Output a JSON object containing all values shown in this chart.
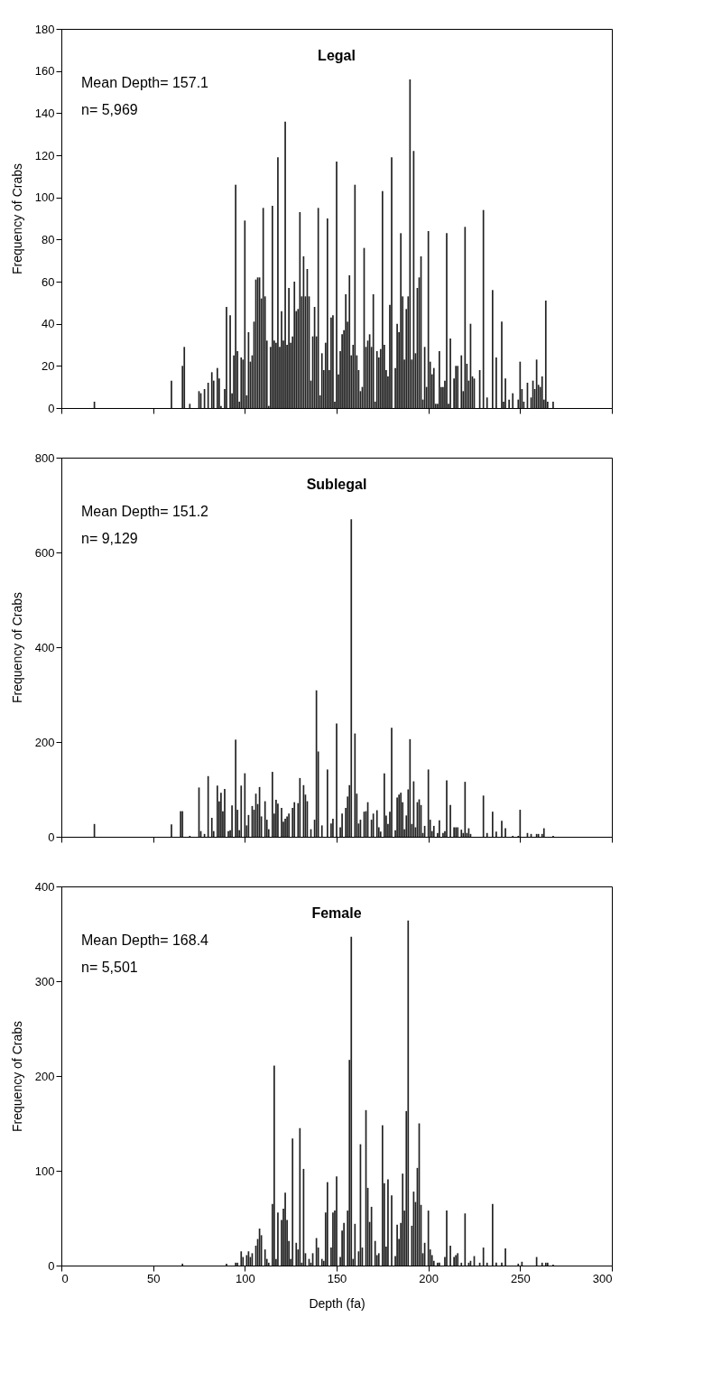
{
  "chart_data": [
    {
      "type": "bar",
      "title": "Legal",
      "ylabel": "Frequency of Crabs",
      "annotations": [
        "Mean Depth= 157.1",
        "n= 5,969"
      ],
      "color": "#222222",
      "xlim": [
        0,
        300
      ],
      "xticks": [
        0,
        50,
        100,
        150,
        200,
        250,
        300
      ],
      "ylim": [
        0,
        180
      ],
      "yticks": [
        0,
        20,
        40,
        60,
        80,
        100,
        120,
        140,
        160,
        180
      ],
      "tick_labels": "y",
      "grid": false,
      "x": [
        18,
        60,
        66,
        67,
        70,
        75,
        76,
        78,
        80,
        82,
        83,
        85,
        86,
        87,
        89,
        90,
        92,
        93,
        94,
        95,
        96,
        97,
        98,
        99,
        100,
        101,
        102,
        103,
        104,
        105,
        106,
        107,
        108,
        109,
        110,
        111,
        112,
        113,
        114,
        115,
        116,
        117,
        118,
        119,
        120,
        121,
        122,
        123,
        124,
        125,
        126,
        127,
        128,
        129,
        130,
        131,
        132,
        133,
        134,
        135,
        136,
        137,
        138,
        139,
        140,
        141,
        142,
        143,
        144,
        145,
        146,
        147,
        148,
        149,
        150,
        151,
        152,
        153,
        154,
        155,
        156,
        157,
        158,
        159,
        160,
        161,
        162,
        163,
        164,
        165,
        166,
        167,
        168,
        169,
        170,
        171,
        172,
        173,
        174,
        175,
        176,
        177,
        178,
        179,
        180,
        182,
        183,
        184,
        185,
        186,
        187,
        188,
        189,
        190,
        191,
        192,
        193,
        194,
        195,
        196,
        197,
        198,
        199,
        200,
        201,
        202,
        203,
        204,
        205,
        206,
        207,
        208,
        209,
        210,
        211,
        212,
        214,
        215,
        216,
        218,
        219,
        220,
        221,
        222,
        223,
        224,
        225,
        228,
        230,
        232,
        235,
        237,
        240,
        241,
        242,
        244,
        246,
        249,
        250,
        251,
        252,
        254,
        256,
        257,
        258,
        259,
        260,
        261,
        262,
        263,
        264,
        265,
        268
      ],
      "values": [
        3,
        13,
        20,
        29,
        2,
        8,
        7,
        9,
        12,
        17,
        13,
        19,
        14,
        1,
        9,
        48,
        44,
        7,
        25,
        106,
        27,
        3,
        24,
        23,
        89,
        6,
        36,
        22,
        25,
        41,
        61,
        62,
        62,
        52,
        95,
        53,
        32,
        1,
        29,
        96,
        32,
        31,
        119,
        29,
        46,
        32,
        136,
        30,
        57,
        31,
        34,
        60,
        46,
        47,
        93,
        53,
        72,
        53,
        66,
        53,
        13,
        34,
        48,
        34,
        95,
        6,
        26,
        18,
        31,
        90,
        18,
        43,
        44,
        3,
        117,
        16,
        27,
        35,
        37,
        54,
        41,
        63,
        25,
        30,
        106,
        25,
        18,
        8,
        10,
        76,
        29,
        32,
        35,
        29,
        54,
        3,
        27,
        24,
        28,
        103,
        30,
        18,
        15,
        49,
        119,
        19,
        40,
        36,
        83,
        53,
        23,
        47,
        53,
        156,
        23,
        122,
        26,
        57,
        62,
        72,
        4,
        29,
        10,
        84,
        22,
        16,
        19,
        2,
        2,
        27,
        10,
        10,
        13,
        83,
        2,
        33,
        14,
        20,
        20,
        25,
        8,
        86,
        21,
        13,
        40,
        15,
        14,
        18,
        94,
        5,
        56,
        24,
        41,
        3,
        14,
        4,
        7,
        4,
        22,
        9,
        3,
        12,
        5,
        13,
        9,
        23,
        11,
        10,
        15,
        4,
        51,
        3,
        3
      ]
    },
    {
      "type": "bar",
      "title": "Sublegal",
      "ylabel": "Frequency of Crabs",
      "annotations": [
        "Mean Depth= 151.2",
        "n= 9,129"
      ],
      "color": "#222222",
      "xlim": [
        0,
        300
      ],
      "xticks": [
        0,
        50,
        100,
        150,
        200,
        250,
        300
      ],
      "ylim": [
        0,
        800
      ],
      "yticks": [
        0,
        200,
        400,
        600,
        800
      ],
      "tick_labels": "y",
      "grid": false,
      "x": [
        18,
        60,
        65,
        66,
        70,
        75,
        76,
        78,
        80,
        82,
        83,
        85,
        86,
        87,
        88,
        89,
        91,
        92,
        93,
        95,
        96,
        97,
        98,
        100,
        101,
        102,
        104,
        105,
        106,
        107,
        108,
        109,
        111,
        112,
        113,
        115,
        116,
        117,
        118,
        120,
        121,
        122,
        123,
        124,
        126,
        127,
        129,
        130,
        132,
        133,
        134,
        136,
        138,
        139,
        140,
        142,
        145,
        147,
        148,
        150,
        152,
        153,
        155,
        156,
        157,
        158,
        160,
        161,
        162,
        163,
        165,
        166,
        167,
        169,
        170,
        172,
        173,
        174,
        176,
        177,
        178,
        179,
        180,
        182,
        183,
        184,
        185,
        186,
        187,
        188,
        189,
        190,
        191,
        192,
        193,
        194,
        195,
        196,
        197,
        198,
        200,
        201,
        202,
        203,
        205,
        206,
        208,
        209,
        210,
        212,
        214,
        215,
        216,
        218,
        219,
        220,
        221,
        222,
        223,
        225,
        228,
        230,
        232,
        235,
        237,
        240,
        242,
        246,
        249,
        250,
        254,
        256,
        259,
        260,
        262,
        263,
        268
      ],
      "values": [
        27,
        26,
        54,
        54,
        2,
        104,
        12,
        6,
        128,
        40,
        12,
        108,
        75,
        93,
        54,
        101,
        12,
        14,
        66,
        205,
        57,
        14,
        108,
        134,
        24,
        46,
        65,
        57,
        91,
        69,
        105,
        43,
        75,
        36,
        16,
        137,
        49,
        78,
        70,
        61,
        32,
        38,
        43,
        49,
        61,
        73,
        71,
        124,
        109,
        89,
        75,
        16,
        36,
        309,
        180,
        24,
        142,
        28,
        38,
        239,
        20,
        49,
        61,
        85,
        109,
        670,
        218,
        91,
        28,
        36,
        53,
        54,
        73,
        36,
        49,
        56,
        20,
        11,
        134,
        45,
        27,
        53,
        230,
        14,
        83,
        89,
        93,
        73,
        16,
        45,
        100,
        206,
        27,
        117,
        20,
        73,
        79,
        67,
        8,
        23,
        142,
        36,
        12,
        23,
        8,
        35,
        8,
        12,
        119,
        67,
        20,
        20,
        20,
        15,
        8,
        116,
        8,
        18,
        6,
        null,
        null,
        87,
        8,
        53,
        11,
        34,
        18,
        2,
        2,
        57,
        8,
        6,
        6,
        6,
        6,
        18,
        2
      ]
    },
    {
      "type": "bar",
      "title": "Female",
      "xlabel": "Depth (fa)",
      "ylabel": "Frequency of Crabs",
      "annotations": [
        "Mean Depth= 168.4",
        "n= 5,501"
      ],
      "color": "#222222",
      "xlim": [
        0,
        300
      ],
      "xticks": [
        0,
        50,
        100,
        150,
        200,
        250,
        300
      ],
      "ylim": [
        0,
        400
      ],
      "yticks": [
        0,
        100,
        200,
        300,
        400
      ],
      "grid": false,
      "x": [
        66,
        78,
        90,
        95,
        96,
        98,
        99,
        101,
        102,
        103,
        104,
        106,
        107,
        108,
        109,
        111,
        112,
        113,
        115,
        116,
        117,
        118,
        120,
        121,
        122,
        123,
        124,
        125,
        126,
        128,
        129,
        130,
        131,
        132,
        133,
        135,
        136,
        137,
        139,
        140,
        142,
        143,
        144,
        145,
        147,
        148,
        149,
        150,
        152,
        153,
        154,
        156,
        157,
        158,
        159,
        160,
        162,
        163,
        164,
        166,
        167,
        168,
        169,
        171,
        172,
        173,
        175,
        176,
        177,
        178,
        180,
        182,
        183,
        184,
        185,
        186,
        187,
        188,
        189,
        191,
        192,
        193,
        194,
        195,
        196,
        197,
        198,
        200,
        201,
        202,
        203,
        205,
        206,
        209,
        210,
        212,
        214,
        215,
        216,
        218,
        220,
        222,
        223,
        225,
        228,
        230,
        232,
        235,
        237,
        240,
        242,
        249,
        251,
        253,
        256,
        259,
        262,
        264,
        265,
        268
      ],
      "values": [
        2,
        null,
        2,
        3,
        3,
        15,
        9,
        11,
        15,
        9,
        13,
        21,
        28,
        39,
        32,
        17,
        7,
        3,
        65,
        211,
        7,
        56,
        48,
        60,
        77,
        48,
        26,
        7,
        134,
        24,
        17,
        145,
        3,
        102,
        13,
        7,
        3,
        13,
        29,
        19,
        7,
        5,
        56,
        88,
        19,
        56,
        58,
        94,
        9,
        37,
        45,
        58,
        217,
        347,
        7,
        44,
        15,
        128,
        19,
        164,
        82,
        46,
        62,
        26,
        11,
        13,
        148,
        87,
        20,
        91,
        74,
        10,
        43,
        28,
        45,
        97,
        58,
        163,
        364,
        42,
        78,
        67,
        103,
        150,
        64,
        13,
        24,
        58,
        17,
        11,
        5,
        3,
        3,
        9,
        58,
        21,
        9,
        11,
        13,
        3,
        55,
        3,
        5,
        10,
        3,
        19,
        3,
        65,
        3,
        3,
        18,
        2,
        4,
        null,
        null,
        9,
        3,
        3,
        3,
        1
      ]
    }
  ]
}
